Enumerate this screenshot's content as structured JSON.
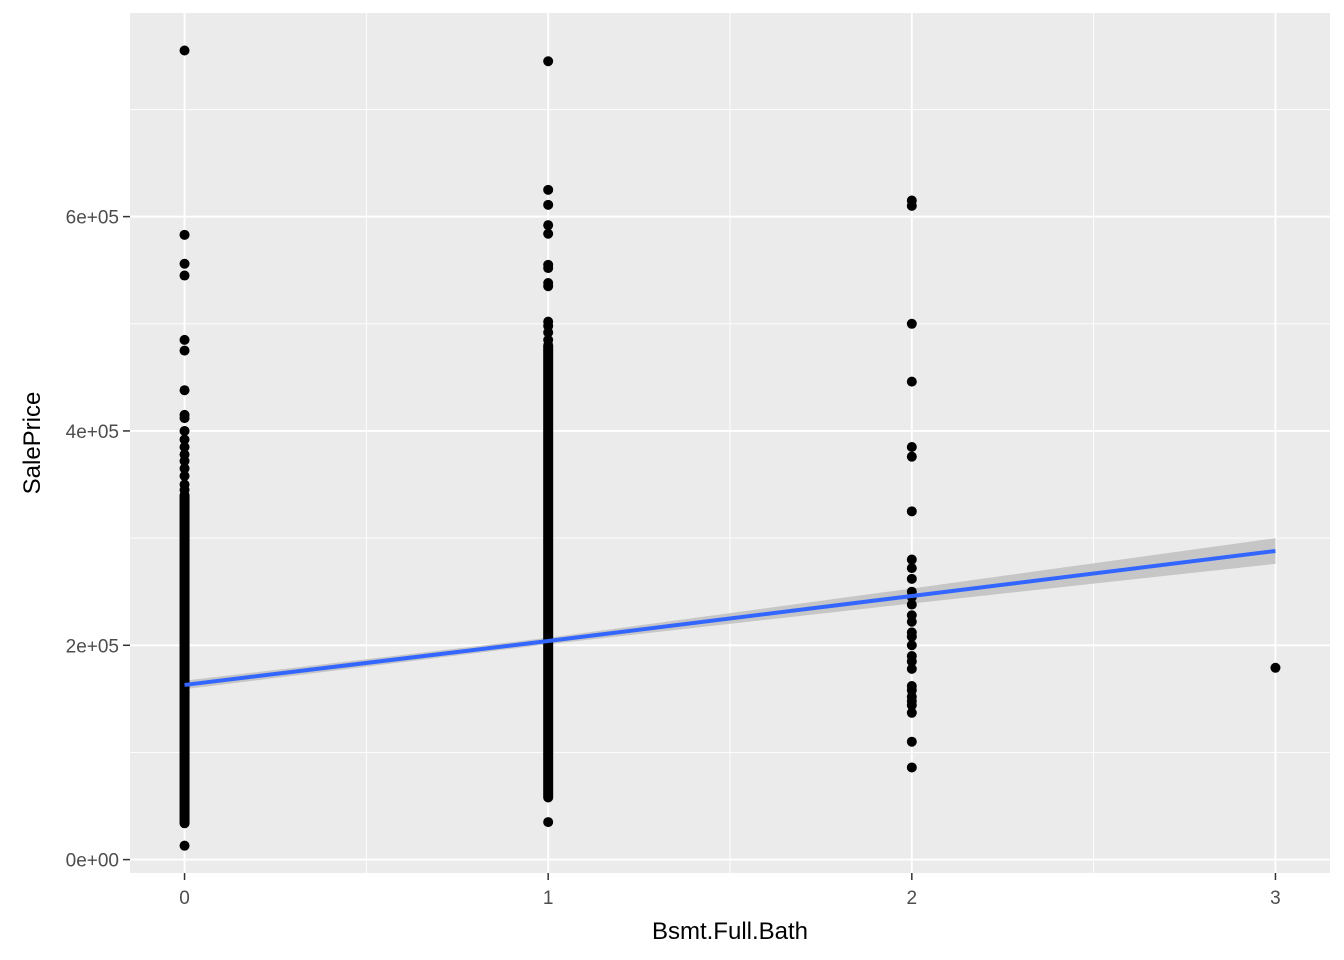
{
  "chart_data": {
    "type": "scatter",
    "title": "",
    "xlabel": "Bsmt.Full.Bath",
    "ylabel": "SalePrice",
    "xlim": [
      -0.15,
      3.15
    ],
    "ylim": [
      -12500,
      790000
    ],
    "x_ticks": [
      0,
      1,
      2,
      3
    ],
    "x_tick_labels": [
      "0",
      "1",
      "2",
      "3"
    ],
    "x_minor_ticks": [
      0.5,
      1.5,
      2.5
    ],
    "y_ticks": [
      0,
      200000,
      400000,
      600000
    ],
    "y_tick_labels": [
      "0e+00",
      "2e+05",
      "4e+05",
      "6e+05"
    ],
    "y_minor_ticks": [
      100000,
      300000,
      500000,
      700000
    ],
    "grid": true,
    "legend": "none",
    "colors": {
      "panel_background": "#ebebeb",
      "grid": "#ffffff",
      "points": "#000000",
      "trend_line": "#3366ff",
      "confidence_band": "#bfbfbf"
    },
    "point_columns": [
      {
        "x": 0,
        "dense_range": [
          34000,
          340000
        ],
        "y": [
          755000,
          583000,
          556000,
          545000,
          485000,
          475000,
          438000,
          415000,
          412000,
          400000,
          392000,
          385000,
          378000,
          372000,
          365000,
          358000,
          350000,
          345000,
          34000,
          13000
        ]
      },
      {
        "x": 1,
        "dense_range": [
          58000,
          480000
        ],
        "y": [
          745000,
          625000,
          611000,
          592000,
          584000,
          555000,
          552000,
          538000,
          535000,
          502000,
          498000,
          492000,
          485000,
          35000
        ]
      },
      {
        "x": 2,
        "dense_range": null,
        "y": [
          615000,
          610000,
          500000,
          446000,
          385000,
          376000,
          325000,
          280000,
          272000,
          262000,
          250000,
          245000,
          238000,
          228000,
          222000,
          212000,
          208000,
          200000,
          190000,
          185000,
          178000,
          162000,
          158000,
          152000,
          148000,
          144000,
          137000,
          110000,
          86000
        ]
      },
      {
        "x": 3,
        "dense_range": null,
        "y": [
          179000
        ]
      }
    ],
    "trend_line": {
      "method": "lm",
      "x": [
        0,
        1,
        2,
        3
      ],
      "y": [
        163000,
        204000,
        246000,
        288000
      ],
      "ci_lower": [
        159000,
        201000,
        239000,
        276000
      ],
      "ci_upper": [
        167000,
        207000,
        253000,
        300000
      ]
    }
  }
}
